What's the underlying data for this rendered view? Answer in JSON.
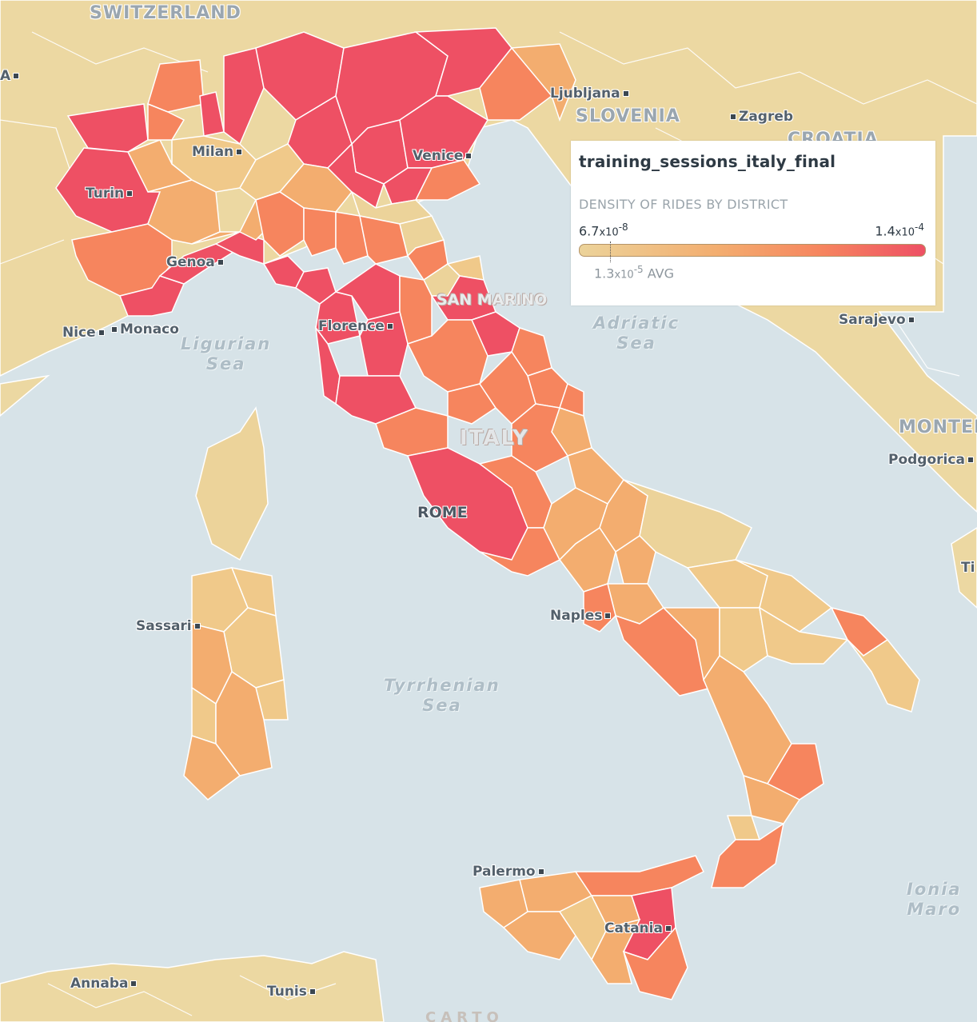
{
  "map": {
    "colors": {
      "sea": "#d7e3e8",
      "land": "#ecd8a2",
      "border": "#ffffff",
      "scale_low": "#ecd39a",
      "scale_mid": "#f3ad6f",
      "scale_high": "#ee5064"
    },
    "countries": {
      "switzerland": "SWITZERLAND",
      "slovenia": "SLOVENIA",
      "croatia": "CROATIA",
      "italy": "ITALY",
      "montenegro": "MONTEN",
      "san_marino": "SAN MARINO"
    },
    "cities": {
      "milan": "Milan",
      "turin": "Turin",
      "genoa": "Genoa",
      "nice": "Nice",
      "monaco": "Monaco",
      "venice": "Venice",
      "ljubljana": "Ljubljana",
      "zagreb": "Zagreb",
      "florence": "Florence",
      "rome": "ROME",
      "naples": "Naples",
      "sassari": "Sassari",
      "palermo": "Palermo",
      "catania": "Catania",
      "sarajevo": "Sarajevo",
      "podgorica": "Podgorica",
      "annaba": "Annaba",
      "tunis": "Tunis",
      "edge_left": "A",
      "edge_right": "Ti"
    },
    "seas": {
      "ligurian": [
        "Ligurian",
        "Sea"
      ],
      "adriatic": [
        "Adriatic",
        "Sea"
      ],
      "tyrrhenian": [
        "Tyrrhenian",
        "Sea"
      ],
      "ionian": [
        "Ionia",
        "Maro"
      ]
    },
    "attribution": "CARTO"
  },
  "legend": {
    "title": "training_sessions_italy_final",
    "subtitle": "DENSITY OF RIDES BY DISTRICT",
    "min": "6.7x10-8",
    "max": "1.4x10-4",
    "avg": "1.3x10-5 AVG",
    "min_display": {
      "base": "6.7",
      "x": "x10",
      "exp": "-8"
    },
    "max_display": {
      "base": "1.4",
      "x": "x10",
      "exp": "-4"
    },
    "avg_display": {
      "base": "1.3",
      "x": "x10",
      "exp": "-5",
      "suffix": " AVG"
    }
  }
}
